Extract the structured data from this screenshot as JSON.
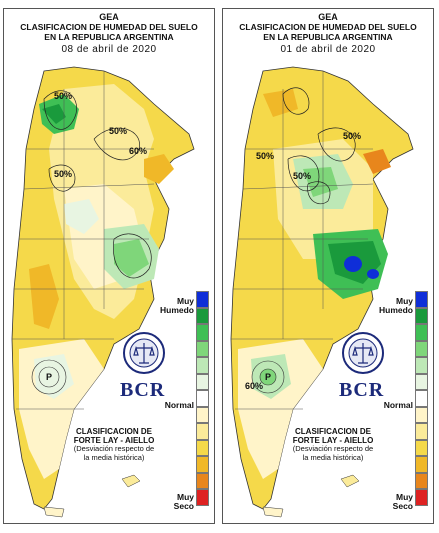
{
  "panels": [
    {
      "org": "GEA",
      "title_line1": "CLASIFICACION DE HUMEDAD DEL SUELO",
      "title_line2": "EN LA REPUBLICA ARGENTINA",
      "date": "08 de abril de 2020",
      "contour_labels": [
        "50%",
        "50%",
        "50%",
        "60%"
      ],
      "ocean_label": "P"
    },
    {
      "org": "GEA",
      "title_line1": "CLASIFICACION DE HUMEDAD DEL SUELO",
      "title_line2": "EN LA REPUBLICA ARGENTINA",
      "date": "01 de abril de 2020",
      "contour_labels": [
        "50%",
        "50%",
        "50%",
        "60%"
      ],
      "ocean_label": "P"
    }
  ],
  "legend": {
    "top_label_1": "Muy",
    "top_label_2": "Humedo",
    "mid_label": "Normal",
    "bottom_label_1": "Muy",
    "bottom_label_2": "Seco",
    "colors": [
      "#0f2ed8",
      "#1a9a3c",
      "#3fbf55",
      "#7fd67a",
      "#bde8b6",
      "#e8f5e2",
      "#ffffff",
      "#fff4c9",
      "#fbeb9a",
      "#f5d94a",
      "#f0b828",
      "#e8861c",
      "#de2222"
    ]
  },
  "brand": {
    "name": "BCR",
    "seal_text": "BOLSA DE COMERCIO DE ROSARIO"
  },
  "info": {
    "line1": "CLASIFICACION DE",
    "line2": "FORTE LAY - AIELLO",
    "line3": "(Desviación respecto de",
    "line4": "la media histórica)"
  }
}
